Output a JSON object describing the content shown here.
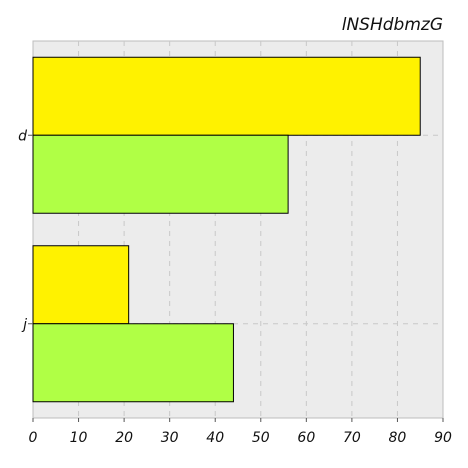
{
  "chart_data": {
    "type": "bar",
    "orientation": "horizontal",
    "title": "lNSHdbmzG",
    "xlabel": "",
    "ylabel": "",
    "categories": [
      "d",
      "j"
    ],
    "series": [
      {
        "values": [
          85,
          21
        ],
        "color": "#fff200"
      },
      {
        "values": [
          56,
          44
        ],
        "color": "#b0ff45"
      }
    ],
    "xlim": [
      0,
      90
    ],
    "xticks": [
      0,
      10,
      20,
      30,
      40,
      50,
      60,
      70,
      80,
      90
    ],
    "grid": true,
    "legend": "none",
    "background": "#ececec"
  }
}
